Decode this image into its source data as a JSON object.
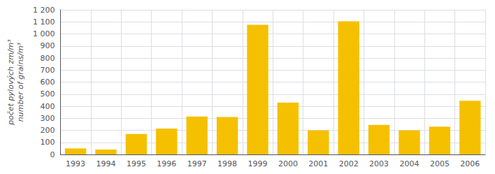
{
  "chart_data": {
    "type": "bar",
    "ylabel": "počet pylových zm/m³\nnumber of grains/m³",
    "categories": [
      "1993",
      "1994",
      "1995",
      "1996",
      "1997",
      "1998",
      "1999",
      "2000",
      "2001",
      "2002",
      "2003",
      "2004",
      "2005",
      "2006"
    ],
    "values": [
      50,
      40,
      170,
      215,
      315,
      310,
      1075,
      430,
      200,
      1105,
      245,
      200,
      230,
      445
    ],
    "color": "#F5C000",
    "ylim": [
      0,
      1200
    ],
    "yticks": [
      0,
      100,
      200,
      300,
      400,
      500,
      600,
      700,
      800,
      900,
      {
        "value": 1000,
        "label": "1 000"
      },
      {
        "value": 1100,
        "label": "1 100"
      },
      {
        "value": 1200,
        "label": "1 200"
      }
    ],
    "grid": true
  }
}
